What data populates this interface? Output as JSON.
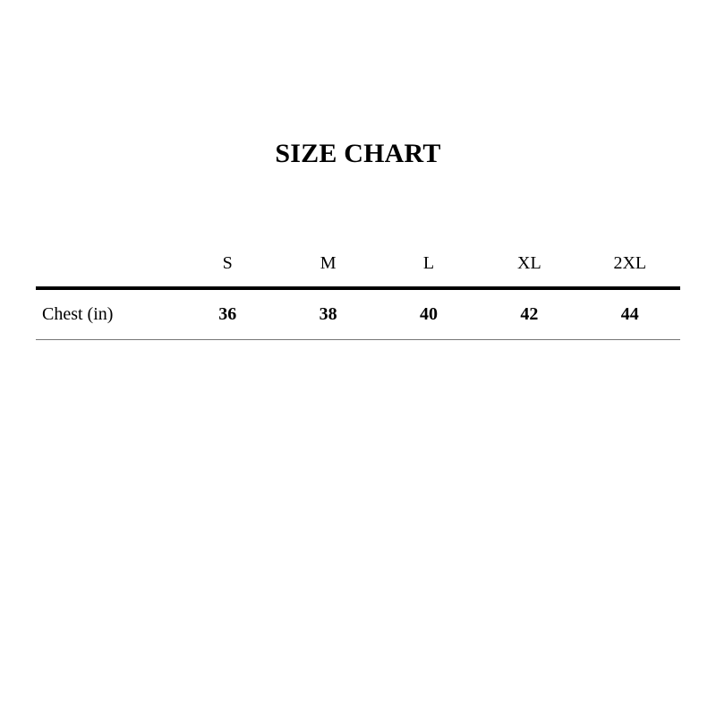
{
  "page": {
    "background": "#ffffff"
  },
  "chart_data": {
    "type": "table",
    "title": "SIZE CHART",
    "columns": [
      "",
      "S",
      "M",
      "L",
      "XL",
      "2XL"
    ],
    "rows": [
      {
        "label": "Chest (in)",
        "values": [
          "36",
          "38",
          "40",
          "42",
          "44"
        ]
      }
    ],
    "layout": {
      "heavy_rule_below_header": true,
      "light_rule_below_body": true,
      "label_column_align": "left",
      "data_column_align": "center"
    }
  },
  "colors": {
    "text": "#000000",
    "heavy_rule": "#000000",
    "light_rule": "#767676",
    "background": "#ffffff"
  }
}
